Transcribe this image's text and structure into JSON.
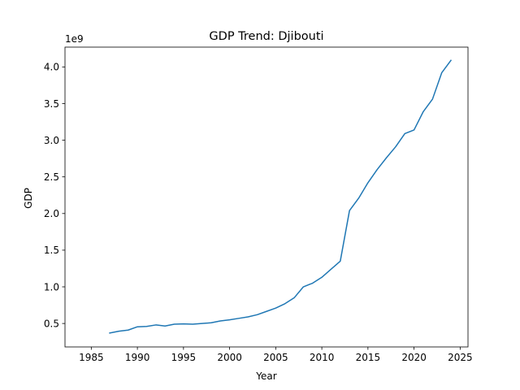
{
  "chart_data": {
    "type": "line",
    "title": "GDP Trend: Djibouti",
    "xlabel": "Year",
    "ylabel": "GDP",
    "y_offset_text": "1e9",
    "x_ticks": [
      1985,
      1990,
      1995,
      2000,
      2005,
      2010,
      2015,
      2020,
      2025
    ],
    "y_ticks": [
      0.5,
      1.0,
      1.5,
      2.0,
      2.5,
      3.0,
      3.5,
      4.0
    ],
    "y_tick_labels": [
      "0.5",
      "1.0",
      "1.5",
      "2.0",
      "2.5",
      "3.0",
      "3.5",
      "4.0"
    ],
    "xlim": [
      1982.15,
      2025.85
    ],
    "ylim": [
      0.18,
      4.27
    ],
    "y_scale_note": "values in units of 1e9",
    "grid": false,
    "series": [
      {
        "color": "#1f77b4",
        "x": [
          1987,
          1988,
          1989,
          1990,
          1991,
          1992,
          1993,
          1994,
          1995,
          1996,
          1997,
          1998,
          1999,
          2000,
          2001,
          2002,
          2003,
          2004,
          2005,
          2006,
          2007,
          2008,
          2009,
          2010,
          2011,
          2012,
          2013,
          2014,
          2015,
          2016,
          2017,
          2018,
          2019,
          2020,
          2021,
          2022,
          2023,
          2024
        ],
        "y": [
          0.37,
          0.395,
          0.41,
          0.455,
          0.46,
          0.48,
          0.465,
          0.49,
          0.495,
          0.49,
          0.5,
          0.51,
          0.535,
          0.55,
          0.57,
          0.59,
          0.62,
          0.665,
          0.71,
          0.77,
          0.85,
          1.0,
          1.05,
          1.13,
          1.24,
          1.35,
          2.04,
          2.21,
          2.42,
          2.6,
          2.76,
          2.91,
          3.09,
          3.14,
          3.39,
          3.56,
          3.92,
          4.09
        ]
      }
    ]
  }
}
